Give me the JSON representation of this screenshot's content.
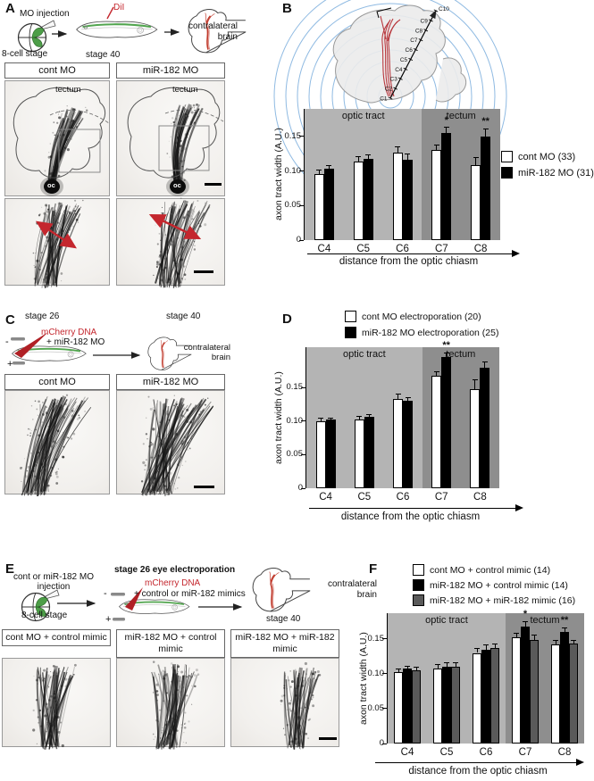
{
  "panels": {
    "a": {
      "label": "A",
      "schematic": {
        "mo_injection": "MO injection",
        "eight_cell": "8-cell stage",
        "stage40": "stage 40",
        "dii": "DiI",
        "contralateral": "contralateral brain"
      },
      "columns": [
        "cont MO",
        "miR-182 MO"
      ],
      "tectum": "tectum",
      "oc": "oc"
    },
    "b": {
      "label": "B",
      "diagram": {
        "landmarks": [
          "C1",
          "C2",
          "C3",
          "C4",
          "C5",
          "C6",
          "C7",
          "C8",
          "C9",
          "C10"
        ]
      },
      "chart": {
        "type": "bar",
        "categories": [
          "C4",
          "C5",
          "C6",
          "C7",
          "C8"
        ],
        "series": [
          {
            "name": "cont MO (33)",
            "color": "#ffffff",
            "values": [
              0.096,
              0.114,
              0.127,
              0.13,
              0.109
            ],
            "errors": [
              0.006,
              0.007,
              0.008,
              0.008,
              0.011
            ]
          },
          {
            "name": "miR-182 MO (31)",
            "color": "#000000",
            "values": [
              0.103,
              0.117,
              0.116,
              0.155,
              0.15
            ],
            "errors": [
              0.005,
              0.007,
              0.009,
              0.008,
              0.011
            ]
          }
        ],
        "sections": [
          {
            "label": "optic tract",
            "span": [
              0,
              2
            ],
            "color": "#b4b4b4"
          },
          {
            "label": "tectum",
            "span": [
              3,
              4
            ],
            "color": "#8e8e8e"
          }
        ],
        "ylabel": "axon tract width (A.U.)",
        "xlabel": "distance from the optic chiasm",
        "yticks": [
          0,
          0.05,
          0.1,
          0.15
        ],
        "ytick_labels": [
          "0",
          "0.05",
          "0.10",
          "0.15"
        ],
        "ylim": [
          0,
          0.19
        ],
        "sig": [
          {
            "cat_index": 3,
            "series_index": 1,
            "label": "*"
          },
          {
            "cat_index": 4,
            "series_index": 1,
            "label": "**"
          }
        ],
        "legend_pos": "right"
      }
    },
    "c": {
      "label": "C",
      "schematic": {
        "stage26": "stage 26",
        "mcherry": "mCherry DNA",
        "plus_mo": "+ miR-182 MO",
        "minus": "-",
        "plus": "+",
        "stage40": "stage 40",
        "contralateral": "contralateral brain"
      },
      "columns": [
        "cont MO",
        "miR-182 MO"
      ]
    },
    "d": {
      "label": "D",
      "chart": {
        "type": "bar",
        "categories": [
          "C4",
          "C5",
          "C6",
          "C7",
          "C8"
        ],
        "series": [
          {
            "name": "cont MO electroporation (20)",
            "color": "#ffffff",
            "values": [
              0.1,
              0.102,
              0.133,
              0.167,
              0.148
            ],
            "errors": [
              0.004,
              0.005,
              0.007,
              0.007,
              0.013
            ]
          },
          {
            "name": "miR-182 MO electroporation (25)",
            "color": "#000000",
            "values": [
              0.102,
              0.106,
              0.13,
              0.196,
              0.18
            ],
            "errors": [
              0.003,
              0.004,
              0.005,
              0.006,
              0.008
            ]
          }
        ],
        "sections": [
          {
            "label": "optic tract",
            "span": [
              0,
              2
            ],
            "color": "#b4b4b4"
          },
          {
            "label": "tectum",
            "span": [
              3,
              4
            ],
            "color": "#8e8e8e"
          }
        ],
        "ylabel": "axon tract width (A.U.)",
        "xlabel": "distance from the optic chiasm",
        "yticks": [
          0,
          0.05,
          0.1,
          0.15
        ],
        "ytick_labels": [
          "0",
          "0.05",
          "0.10",
          "0.15"
        ],
        "ylim": [
          0,
          0.21
        ],
        "sig": [
          {
            "cat_index": 3,
            "series_index": 1,
            "label": "**"
          }
        ],
        "legend_pos": "top"
      }
    },
    "e": {
      "label": "E",
      "schematic": {
        "injection": "cont or miR-182 MO injection",
        "eight_cell": "8-cell stage",
        "electroporation": "stage 26 eye electroporation",
        "mcherry": "mCherry DNA",
        "mimics": "+ control or miR-182 mimics",
        "minus": "-",
        "plus": "+",
        "stage40": "stage 40",
        "contralateral": "contralateral brain"
      },
      "columns": [
        "cont MO + control mimic",
        "miR-182 MO + control mimic",
        "miR-182 MO + miR-182 mimic"
      ]
    },
    "f": {
      "label": "F",
      "chart": {
        "type": "bar",
        "categories": [
          "C4",
          "C5",
          "C6",
          "C7",
          "C8"
        ],
        "series": [
          {
            "name": "cont MO + control mimic (14)",
            "color": "#ffffff",
            "values": [
              0.103,
              0.108,
              0.13,
              0.152,
              0.142
            ],
            "errors": [
              0.004,
              0.005,
              0.006,
              0.006,
              0.006
            ]
          },
          {
            "name": "miR-182 MO + control mimic (14)",
            "color": "#000000",
            "values": [
              0.107,
              0.11,
              0.134,
              0.168,
              0.16
            ],
            "errors": [
              0.004,
              0.006,
              0.007,
              0.007,
              0.006
            ]
          },
          {
            "name": "miR-182 MO + miR-182 mimic (16)",
            "color": "#5a5a5a",
            "values": [
              0.105,
              0.11,
              0.137,
              0.148,
              0.143
            ],
            "errors": [
              0.005,
              0.006,
              0.006,
              0.007,
              0.005
            ]
          }
        ],
        "sections": [
          {
            "label": "optic tract",
            "span": [
              0,
              2
            ],
            "color": "#b4b4b4"
          },
          {
            "label": "tectum",
            "span": [
              3,
              4
            ],
            "color": "#8e8e8e"
          }
        ],
        "ylabel": "axon tract width (A.U.)",
        "xlabel": "distance from the optic chiasm",
        "yticks": [
          0,
          0.05,
          0.1,
          0.15
        ],
        "ytick_labels": [
          "0",
          "0.05",
          "0.10",
          "0.15"
        ],
        "ylim": [
          0,
          0.187
        ],
        "sig": [
          {
            "cat_index": 3,
            "series_index": 1,
            "label": "*"
          },
          {
            "cat_index": 4,
            "series_index": 1,
            "label": "**"
          }
        ],
        "legend_pos": "top"
      }
    }
  }
}
